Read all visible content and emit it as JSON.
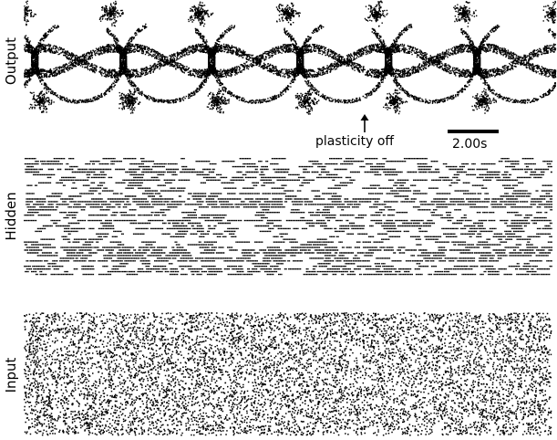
{
  "panels": {
    "output": {
      "label": "Output"
    },
    "hidden": {
      "label": "Hidden"
    },
    "input": {
      "label": "Input"
    }
  },
  "annotation": {
    "text": "plasticity off"
  },
  "scale_bar": {
    "label": "2.00s"
  },
  "colors": {
    "spike": "#000000",
    "background": "#ffffff"
  },
  "icons": {
    "annotation_arrow": "up-arrow-icon"
  }
}
